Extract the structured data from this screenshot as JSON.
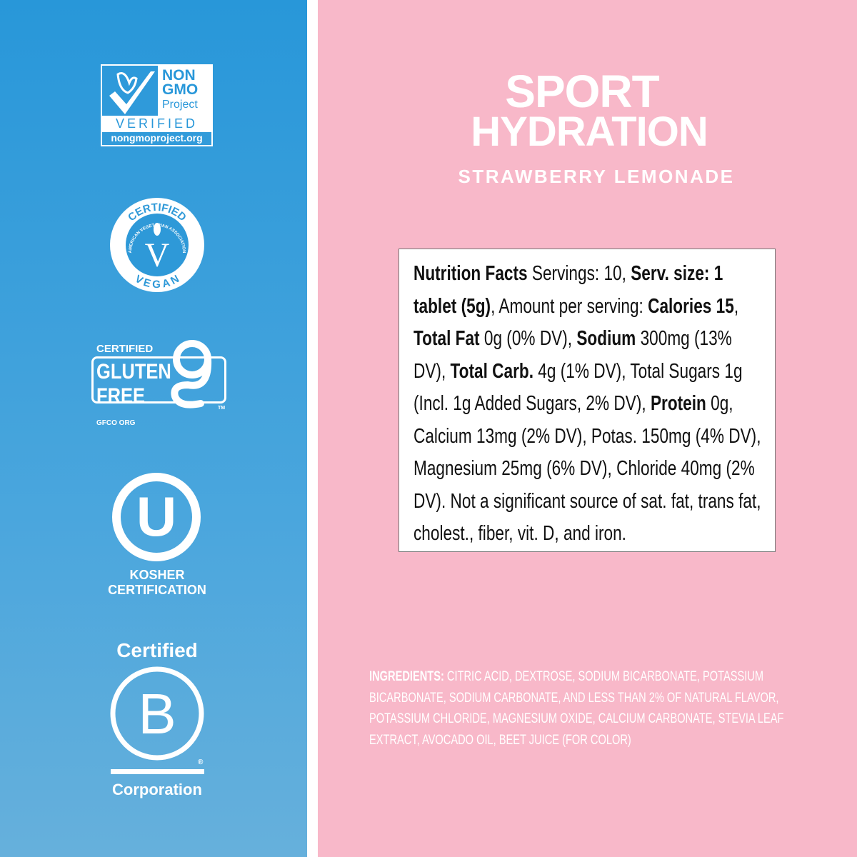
{
  "colors": {
    "left_panel_top": "#2897d9",
    "left_panel_bottom": "#66b0dc",
    "right_panel": "#f8b8c9",
    "text_on_panel": "#ffffff"
  },
  "badges": {
    "non_gmo": {
      "line1": "NON",
      "line2": "GMO",
      "line3": "Project",
      "band": "VERIFIED",
      "url": "nongmoproject.org",
      "icon": "butterfly-check-icon"
    },
    "vegan": {
      "top": "CERTIFIED",
      "ring": "AMERICAN VEGETARIAN ASSOCIATION",
      "letter": "V",
      "bottom": "VEGAN"
    },
    "gluten_free": {
      "top": "CERTIFIED",
      "line1": "GLUTEN",
      "line2": "FREE",
      "mark": "TM",
      "bottom": "GFCO ORG"
    },
    "kosher": {
      "letter": "U",
      "line1": "KOSHER",
      "line2": "CERTIFICATION"
    },
    "bcorp": {
      "top": "Certified",
      "letter": "B",
      "reg": "®",
      "bottom": "Corporation"
    }
  },
  "product": {
    "title_line1": "SPORT",
    "title_line2": "HYDRATION",
    "flavor": "STRAWBERRY LEMONADE"
  },
  "nutrition_facts": [
    {
      "text": "Nutrition Facts",
      "bold": true
    },
    {
      "text": " Servings: 10, ",
      "bold": false
    },
    {
      "text": "Serv. size: 1 tablet (5g)",
      "bold": true
    },
    {
      "text": ", Amount per serving: ",
      "bold": false
    },
    {
      "text": "Calories 15",
      "bold": true
    },
    {
      "text": ", ",
      "bold": false
    },
    {
      "text": "Total Fat",
      "bold": true
    },
    {
      "text": " 0g (0% DV), ",
      "bold": false
    },
    {
      "text": "Sodium",
      "bold": true
    },
    {
      "text": " 300mg (13% DV), ",
      "bold": false
    },
    {
      "text": "Total Carb.",
      "bold": true
    },
    {
      "text": " 4g (1% DV), Total Sugars 1g (Incl. 1g Added Sugars, 2% DV), ",
      "bold": false
    },
    {
      "text": "Protein",
      "bold": true
    },
    {
      "text": " 0g, Calcium 13mg (2% DV), Potas. 150mg (4% DV), Magnesium 25mg (6% DV), Chloride 40mg (2% DV). Not a significant source of sat. fat, trans fat, cholest., fiber, vit. D, and iron.",
      "bold": false
    }
  ],
  "ingredients": {
    "label": "INGREDIENTS:",
    "text": " CITRIC ACID, DEXTROSE, SODIUM BICARBONATE, POTASSIUM BICARBONATE, SODIUM CARBONATE, AND LESS THAN 2% OF NATURAL FLAVOR, POTASSIUM CHLORIDE, MAGNESIUM OXIDE, CALCIUM CARBONATE, STEVIA LEAF EXTRACT, AVOCADO OIL, BEET JUICE (FOR COLOR)"
  }
}
